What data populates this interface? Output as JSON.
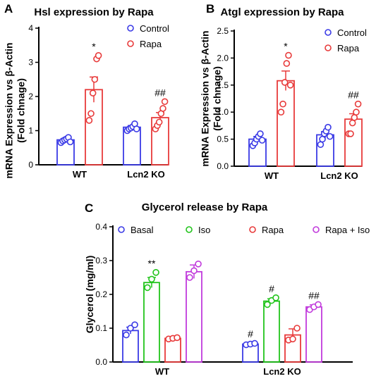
{
  "colors": {
    "blue": "#3b3be6",
    "red": "#e83b3b",
    "green": "#22c41c",
    "purple": "#c13bdc",
    "axis": "#000000"
  },
  "chart_data": [
    {
      "panel_label": "A",
      "type": "bar",
      "title": "Hsl expression by Rapa",
      "ylabel": "mRNA Expression vs β-Actin\n(Fold chnage)",
      "ylim": [
        0,
        4
      ],
      "yticks": [
        "0",
        "1",
        "2",
        "3",
        "4"
      ],
      "categories": [
        "WT",
        "Lcn2 KO"
      ],
      "legend_position": "top-right",
      "series": [
        {
          "name": "Control",
          "color": "blue",
          "values": [
            0.73,
            1.1
          ],
          "errors": [
            0.04,
            0.05
          ],
          "points": [
            [
              0.65,
              0.7,
              0.73,
              0.76,
              0.8,
              0.67
            ],
            [
              1.0,
              1.05,
              1.08,
              1.12,
              1.2,
              1.05
            ]
          ]
        },
        {
          "name": "Rapa",
          "color": "red",
          "values": [
            2.2,
            1.38
          ],
          "errors": [
            0.37,
            0.15
          ],
          "points": [
            [
              1.3,
              1.5,
              2.1,
              2.5,
              3.1,
              3.2
            ],
            [
              1.05,
              1.15,
              1.25,
              1.5,
              1.65,
              1.85
            ]
          ]
        }
      ],
      "annotations": [
        {
          "category": 0,
          "series": 1,
          "text": "*"
        },
        {
          "category": 1,
          "series": 1,
          "text": "##"
        }
      ]
    },
    {
      "panel_label": "B",
      "type": "bar",
      "title": "Atgl expression by Rapa",
      "ylabel": "mRNA Expression vs β-Actin\n(Fold chnage)",
      "ylim": [
        0,
        2.5
      ],
      "yticks": [
        "0.0",
        "0.5",
        "1.0",
        "1.5",
        "2.0",
        "2.5"
      ],
      "categories": [
        "WT",
        "Lcn2 KO"
      ],
      "legend_position": "top-right",
      "series": [
        {
          "name": "Control",
          "color": "blue",
          "values": [
            0.5,
            0.58
          ],
          "errors": [
            0.05,
            0.06
          ],
          "points": [
            [
              0.38,
              0.43,
              0.5,
              0.55,
              0.6,
              0.48
            ],
            [
              0.4,
              0.5,
              0.6,
              0.65,
              0.72,
              0.55
            ]
          ]
        },
        {
          "name": "Rapa",
          "color": "red",
          "values": [
            1.58,
            0.87
          ],
          "errors": [
            0.18,
            0.1
          ],
          "points": [
            [
              1.0,
              1.15,
              1.55,
              1.9,
              2.05,
              1.5
            ],
            [
              0.6,
              0.6,
              0.8,
              0.9,
              1.0,
              1.15
            ]
          ]
        }
      ],
      "annotations": [
        {
          "category": 0,
          "series": 1,
          "text": "*"
        },
        {
          "category": 1,
          "series": 1,
          "text": "##"
        }
      ]
    },
    {
      "panel_label": "C",
      "type": "bar",
      "title": "Glycerol release by Rapa",
      "ylabel": "Glycerol (mg/ml)",
      "ylim": [
        0,
        0.4
      ],
      "yticks": [
        "0.0",
        "0.1",
        "0.2",
        "0.3",
        "0.4"
      ],
      "categories": [
        "WT",
        "Lcn2 KO"
      ],
      "legend_position": "top",
      "series": [
        {
          "name": "Basal",
          "color": "blue",
          "values": [
            0.093,
            0.053
          ],
          "errors": [
            0.01,
            0.003
          ],
          "points": [
            [
              0.08,
              0.1,
              0.11
            ],
            [
              0.051,
              0.053,
              0.055
            ]
          ]
        },
        {
          "name": "Iso",
          "color": "green",
          "values": [
            0.235,
            0.18
          ],
          "errors": [
            0.015,
            0.007
          ],
          "points": [
            [
              0.22,
              0.245,
              0.265
            ],
            [
              0.17,
              0.182,
              0.19
            ]
          ]
        },
        {
          "name": "Rapa",
          "color": "red",
          "values": [
            0.07,
            0.08
          ],
          "errors": [
            0.005,
            0.018
          ],
          "points": [
            [
              0.068,
              0.07,
              0.072
            ],
            [
              0.065,
              0.068,
              0.1
            ]
          ]
        },
        {
          "name": "Rapa + Iso",
          "color": "purple",
          "values": [
            0.267,
            0.163
          ],
          "errors": [
            0.02,
            0.006
          ],
          "points": [
            [
              0.25,
              0.27,
              0.29
            ],
            [
              0.155,
              0.163,
              0.17
            ]
          ]
        }
      ],
      "annotations": [
        {
          "category": 0,
          "series": 1,
          "text": "**"
        },
        {
          "category": 1,
          "series": 0,
          "text": "#"
        },
        {
          "category": 1,
          "series": 1,
          "text": "#"
        },
        {
          "category": 1,
          "series": 3,
          "text": "##"
        }
      ]
    }
  ]
}
